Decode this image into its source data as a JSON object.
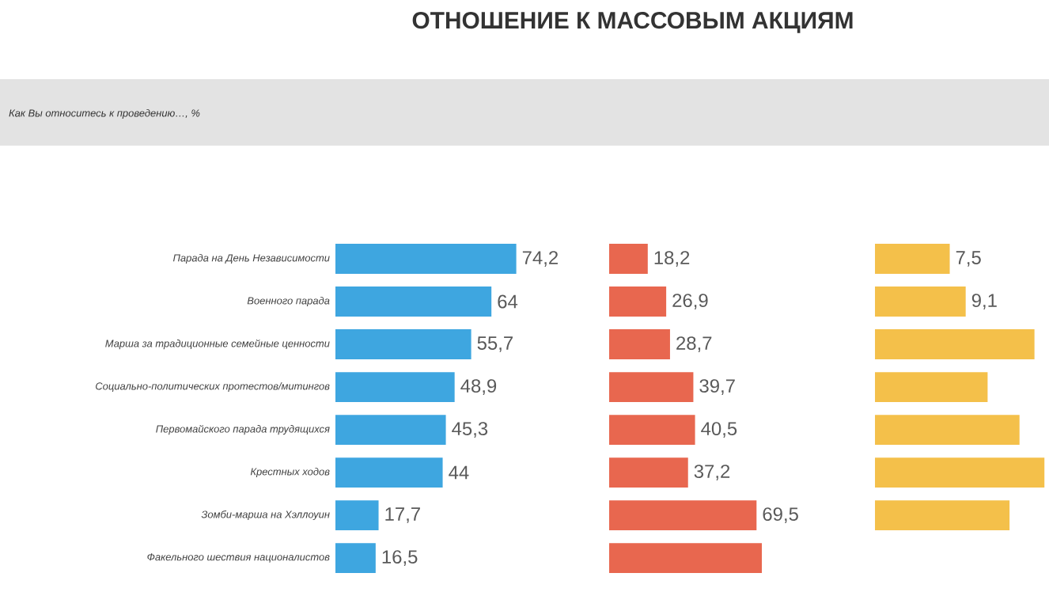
{
  "chart_data": [
    {
      "type": "bar",
      "orientation": "horizontal",
      "title": "ОТНОШЕНИЕ К МАССОВЫМ АКЦИЯМ",
      "subtitle": "Как Вы относитесь к проведению…, %",
      "categories": [
        "Парада на День Независимости",
        "Военного парада",
        "Марша за традиционные семейные ценности",
        "Социально-политических протестов/митингов",
        "Первомайского парада трудящихся",
        "Крестных ходов",
        "Зомби-марша на Хэллоуин",
        "Факельного шествия националистов"
      ],
      "values": [
        74.2,
        64,
        55.7,
        48.9,
        45.3,
        44,
        17.7,
        16.5
      ],
      "color": "#3ea6e0",
      "value_labels": [
        "74,2",
        "64",
        "55,7",
        "48,9",
        "45,3",
        "44",
        "17,7",
        "16,5"
      ],
      "tick_labels": "y"
    },
    {
      "type": "bar",
      "orientation": "horizontal",
      "categories": [
        null,
        null,
        null,
        null,
        null,
        null,
        null,
        null
      ],
      "values": [
        18.2,
        26.9,
        28.7,
        39.7,
        40.5,
        37.2,
        69.5,
        72
      ],
      "color": "#e8674f",
      "value_labels": [
        "18,2",
        "26,9",
        "28,7",
        "39,7",
        "40,5",
        "37,2",
        "69,5",
        null
      ],
      "tick_labels": false
    },
    {
      "type": "bar",
      "orientation": "horizontal",
      "categories": [
        null,
        null,
        null,
        null,
        null,
        null,
        null,
        null
      ],
      "values": [
        7.5,
        9.1,
        16,
        11.3,
        14.5,
        17,
        13.5,
        null
      ],
      "color": "#f4c04a",
      "value_labels": [
        "7,5",
        "9,1",
        null,
        null,
        null,
        null,
        null,
        null
      ],
      "tick_labels": false
    }
  ]
}
